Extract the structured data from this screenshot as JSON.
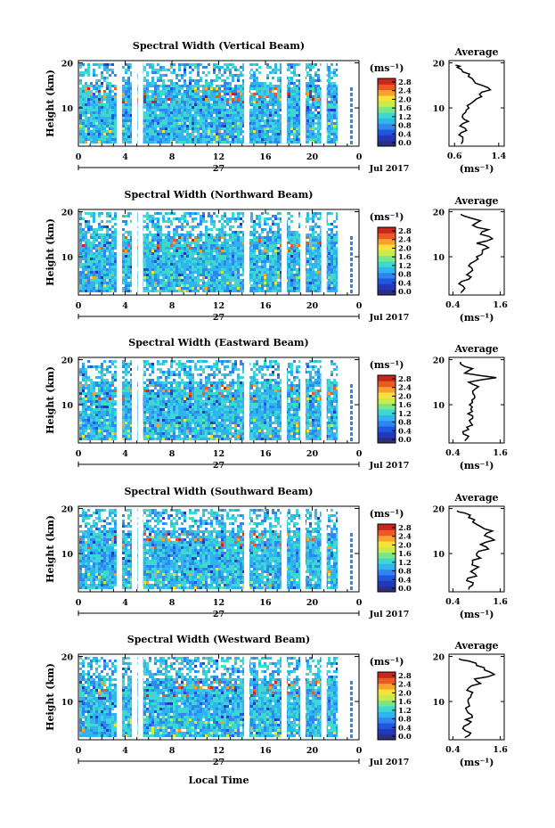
{
  "x_axis_label": "Local Time",
  "date_label": "Jul 2017",
  "day_label": "27",
  "colorbar_unit": "(ms⁻¹)",
  "avg_title": "Average",
  "avg_xlabel": "(ms⁻¹)",
  "colormap": [
    "#2b2f80",
    "#2338b8",
    "#1f56e0",
    "#2f86f0",
    "#30b4f0",
    "#3dd9d0",
    "#7ae68a",
    "#c8ec4a",
    "#f8e23a",
    "#f8a030",
    "#ea5a22",
    "#c8281c"
  ],
  "chart_data": [
    {
      "type": "heatmap",
      "title": "Spectral Width (Vertical Beam)",
      "ylabel": "Height (km)",
      "x_ticks": [
        "0",
        "4",
        "8",
        "12",
        "16",
        "20",
        "0"
      ],
      "y_ticks": [
        "20",
        "10"
      ],
      "xlim": [
        0,
        24
      ],
      "ylim": [
        1.5,
        20.5
      ],
      "colorbar_ticks": [
        "2.8",
        "2.4",
        "2.0",
        "1.6",
        "1.2",
        "0.8",
        "0.4",
        "0.0"
      ],
      "gaps_hours": [
        3.5,
        4.8,
        5.3,
        14.4,
        17.6,
        19.2,
        21.0,
        22.4
      ],
      "average": {
        "x_ticks": [
          "0.6",
          "1.4"
        ],
        "xlim": [
          0.5,
          1.5
        ],
        "y_ticks": [
          "20",
          "10"
        ],
        "heights": [
          2,
          3,
          4,
          5,
          6,
          7,
          8,
          9,
          10,
          11,
          12,
          13,
          14,
          15,
          16,
          17,
          18,
          19,
          19.5
        ],
        "values": [
          0.72,
          0.75,
          0.68,
          0.82,
          0.7,
          0.85,
          0.74,
          0.8,
          0.86,
          0.9,
          1.0,
          1.05,
          1.25,
          1.1,
          0.95,
          0.85,
          0.75,
          0.65,
          0.62
        ]
      }
    },
    {
      "type": "heatmap",
      "title": "Spectral Width (Northward Beam)",
      "ylabel": "Height (km)",
      "x_ticks": [
        "0",
        "4",
        "8",
        "12",
        "16",
        "20",
        "0"
      ],
      "y_ticks": [
        "20",
        "10"
      ],
      "xlim": [
        0,
        24
      ],
      "ylim": [
        1.5,
        20.5
      ],
      "colorbar_ticks": [
        "2.8",
        "2.4",
        "2.0",
        "1.6",
        "1.2",
        "0.8",
        "0.4",
        "0.0"
      ],
      "gaps_hours": [
        3.5,
        4.8,
        5.3,
        14.4,
        17.6,
        19.2,
        21.0,
        22.4
      ],
      "average": {
        "x_ticks": [
          "0.4",
          "1.6"
        ],
        "xlim": [
          0.3,
          1.7
        ],
        "y_ticks": [
          "20",
          "10"
        ],
        "heights": [
          2,
          3,
          4,
          5,
          6,
          7,
          8,
          9,
          10,
          11,
          12,
          13,
          14,
          15,
          16,
          17,
          18,
          19,
          19.5
        ],
        "values": [
          0.6,
          0.7,
          0.55,
          0.8,
          0.75,
          0.9,
          0.8,
          0.95,
          1.0,
          1.15,
          1.3,
          1.0,
          1.4,
          1.1,
          1.3,
          0.9,
          1.1,
          0.7,
          0.6
        ]
      }
    },
    {
      "type": "heatmap",
      "title": "Spectral Width (Eastward Beam)",
      "ylabel": "Height (km)",
      "x_ticks": [
        "0",
        "4",
        "8",
        "12",
        "16",
        "20",
        "0"
      ],
      "y_ticks": [
        "20",
        "10"
      ],
      "xlim": [
        0,
        24
      ],
      "ylim": [
        1.5,
        20.5
      ],
      "colorbar_ticks": [
        "2.8",
        "2.4",
        "2.0",
        "1.6",
        "1.2",
        "0.8",
        "0.4",
        "0.0"
      ],
      "gaps_hours": [
        3.5,
        4.8,
        5.3,
        14.4,
        17.6,
        19.2,
        21.0,
        22.4
      ],
      "average": {
        "x_ticks": [
          "0.4",
          "1.6"
        ],
        "xlim": [
          0.3,
          1.7
        ],
        "y_ticks": [
          "20",
          "10"
        ],
        "heights": [
          2,
          3,
          4,
          5,
          6,
          7,
          8,
          9,
          10,
          11,
          12,
          13,
          14,
          15,
          16,
          17,
          18,
          19,
          19.5
        ],
        "values": [
          0.7,
          0.8,
          0.65,
          0.75,
          0.85,
          0.9,
          0.78,
          0.85,
          0.82,
          0.88,
          0.95,
          0.9,
          1.05,
          0.8,
          1.5,
          0.7,
          0.9,
          0.6,
          0.6
        ]
      }
    },
    {
      "type": "heatmap",
      "title": "Spectral Width (Southward Beam)",
      "ylabel": "Height (km)",
      "x_ticks": [
        "0",
        "4",
        "8",
        "12",
        "16",
        "20",
        "0"
      ],
      "y_ticks": [
        "20",
        "10"
      ],
      "xlim": [
        0,
        24
      ],
      "ylim": [
        1.5,
        20.5
      ],
      "colorbar_ticks": [
        "2.8",
        "2.4",
        "2.0",
        "1.6",
        "1.2",
        "0.8",
        "0.4",
        "0.0"
      ],
      "gaps_hours": [
        3.5,
        4.8,
        5.3,
        14.4,
        17.6,
        19.2,
        21.0,
        22.4
      ],
      "average": {
        "x_ticks": [
          "0.4",
          "1.6"
        ],
        "xlim": [
          0.3,
          1.7
        ],
        "y_ticks": [
          "20",
          "10"
        ],
        "heights": [
          2,
          3,
          4,
          5,
          6,
          7,
          8,
          9,
          10,
          11,
          12,
          13,
          14,
          15,
          16,
          17,
          18,
          19,
          19.5
        ],
        "values": [
          0.8,
          0.9,
          0.75,
          1.0,
          0.85,
          1.05,
          0.9,
          1.1,
          1.0,
          1.3,
          1.1,
          1.45,
          1.2,
          1.4,
          1.1,
          0.9,
          0.8,
          0.7,
          0.5
        ]
      }
    },
    {
      "type": "heatmap",
      "title": "Spectral Width (Westward Beam)",
      "ylabel": "Height (km)",
      "x_ticks": [
        "0",
        "4",
        "8",
        "12",
        "16",
        "20",
        "0"
      ],
      "y_ticks": [
        "20",
        "10"
      ],
      "xlim": [
        0,
        24
      ],
      "ylim": [
        1.5,
        20.5
      ],
      "colorbar_ticks": [
        "2.8",
        "2.4",
        "2.0",
        "1.6",
        "1.2",
        "0.8",
        "0.4",
        "0.0"
      ],
      "gaps_hours": [
        3.5,
        4.8,
        5.3,
        14.4,
        17.6,
        19.2,
        21.0,
        22.4
      ],
      "average": {
        "x_ticks": [
          "0.4",
          "1.6"
        ],
        "xlim": [
          0.3,
          1.7
        ],
        "y_ticks": [
          "20",
          "10"
        ],
        "heights": [
          2,
          3,
          4,
          5,
          6,
          7,
          8,
          9,
          10,
          11,
          12,
          13,
          14,
          15,
          16,
          17,
          18,
          19,
          19.5
        ],
        "values": [
          0.7,
          0.85,
          0.65,
          0.8,
          0.72,
          0.88,
          0.75,
          0.82,
          0.78,
          0.85,
          0.9,
          0.8,
          1.1,
          0.95,
          1.45,
          1.2,
          1.0,
          0.8,
          0.55
        ]
      }
    }
  ]
}
